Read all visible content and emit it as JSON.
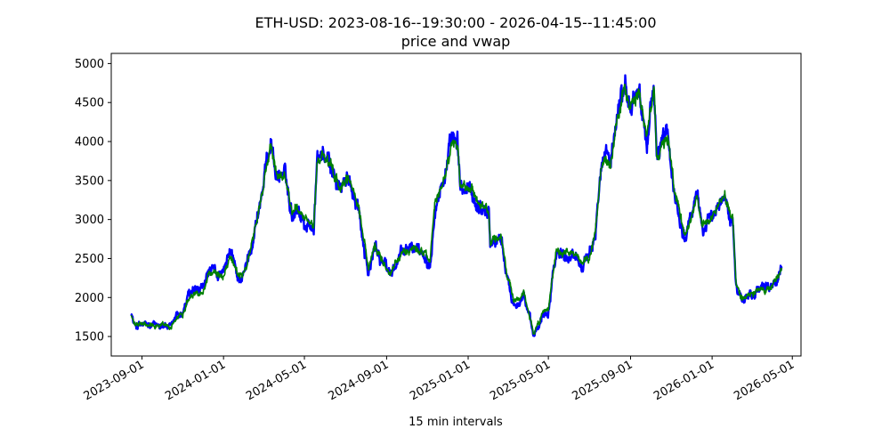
{
  "chart_data": {
    "type": "line",
    "title": "ETH-USD: 2023-08-16--19:30:00 - 2026-04-15--11:45:00",
    "subtitle": "price and vwap",
    "xlabel": "15 min intervals",
    "ylabel": "",
    "x_ticks": [
      "2023-09-01",
      "2024-01-01",
      "2024-05-01",
      "2024-09-01",
      "2025-01-01",
      "2025-05-01",
      "2025-09-01",
      "2026-01-01",
      "2026-05-01"
    ],
    "y_ticks": [
      1500,
      2000,
      2500,
      3000,
      3500,
      4000,
      4500,
      5000
    ],
    "xlim": [
      "2023-07-17",
      "2026-05-14"
    ],
    "ylim": [
      1250,
      5130
    ],
    "grid": false,
    "legend": "none",
    "series": [
      {
        "color": "#0000ff",
        "x": [
          "2023-08-16",
          "2023-08-20",
          "2023-09-01",
          "2023-09-15",
          "2023-10-01",
          "2023-10-15",
          "2023-10-23",
          "2023-11-01",
          "2023-11-10",
          "2023-12-01",
          "2023-12-10",
          "2024-01-01",
          "2024-01-11",
          "2024-01-23",
          "2024-02-01",
          "2024-02-15",
          "2024-02-29",
          "2024-03-05",
          "2024-03-12",
          "2024-03-20",
          "2024-04-01",
          "2024-04-13",
          "2024-04-20",
          "2024-05-01",
          "2024-05-15",
          "2024-05-20",
          "2024-05-27",
          "2024-06-10",
          "2024-06-24",
          "2024-07-08",
          "2024-07-20",
          "2024-08-05",
          "2024-08-15",
          "2024-09-06",
          "2024-09-27",
          "2024-10-15",
          "2024-10-30",
          "2024-11-05",
          "2024-11-12",
          "2024-11-25",
          "2024-12-08",
          "2024-12-16",
          "2024-12-20",
          "2025-01-06",
          "2025-01-13",
          "2025-02-01",
          "2025-02-03",
          "2025-02-20",
          "2025-03-01",
          "2025-03-11",
          "2025-03-25",
          "2025-04-09",
          "2025-04-15",
          "2025-04-23",
          "2025-05-01",
          "2025-05-08",
          "2025-05-13",
          "2025-05-22",
          "2025-06-10",
          "2025-06-22",
          "2025-07-01",
          "2025-07-10",
          "2025-07-18",
          "2025-07-28",
          "2025-08-02",
          "2025-08-11",
          "2025-08-22",
          "2025-09-01",
          "2025-09-13",
          "2025-09-25",
          "2025-10-06",
          "2025-10-10",
          "2025-10-27",
          "2025-11-04",
          "2025-11-21",
          "2025-12-01",
          "2025-12-10",
          "2025-12-18",
          "2026-01-01",
          "2026-01-06",
          "2026-01-20",
          "2026-02-01",
          "2026-02-06",
          "2026-02-15",
          "2026-03-01",
          "2026-03-15",
          "2026-04-01",
          "2026-04-15"
        ],
        "y": [
          1820,
          1640,
          1650,
          1620,
          1670,
          1600,
          1780,
          1800,
          2030,
          2090,
          2340,
          2280,
          2600,
          2240,
          2300,
          2800,
          3400,
          3700,
          4050,
          3550,
          3600,
          3050,
          3200,
          2950,
          2900,
          3750,
          3850,
          3650,
          3400,
          3500,
          3200,
          2300,
          2650,
          2300,
          2600,
          2650,
          2550,
          2420,
          3200,
          3500,
          4000,
          3950,
          3400,
          3350,
          3200,
          3100,
          2700,
          2750,
          2200,
          1900,
          2050,
          1490,
          1620,
          1800,
          1830,
          2350,
          2600,
          2550,
          2550,
          2450,
          2480,
          2800,
          3650,
          3800,
          3650,
          4300,
          4750,
          4400,
          4700,
          3950,
          4700,
          3850,
          4100,
          3400,
          2750,
          3050,
          3300,
          2900,
          3000,
          3100,
          3300,
          3000,
          2100,
          1980,
          2050,
          2100,
          2150,
          2380
        ]
      },
      {
        "color": "#008000",
        "x": [
          "2023-08-16",
          "2023-08-20",
          "2023-09-01",
          "2023-09-15",
          "2023-10-01",
          "2023-10-15",
          "2023-10-23",
          "2023-11-01",
          "2023-11-10",
          "2023-12-01",
          "2023-12-10",
          "2024-01-01",
          "2024-01-11",
          "2024-01-23",
          "2024-02-01",
          "2024-02-15",
          "2024-02-29",
          "2024-03-05",
          "2024-03-12",
          "2024-03-20",
          "2024-04-01",
          "2024-04-13",
          "2024-04-20",
          "2024-05-01",
          "2024-05-15",
          "2024-05-20",
          "2024-05-27",
          "2024-06-10",
          "2024-06-24",
          "2024-07-08",
          "2024-07-20",
          "2024-08-05",
          "2024-08-15",
          "2024-09-06",
          "2024-09-27",
          "2024-10-15",
          "2024-10-30",
          "2024-11-05",
          "2024-11-12",
          "2024-11-25",
          "2024-12-08",
          "2024-12-16",
          "2024-12-20",
          "2025-01-06",
          "2025-01-13",
          "2025-02-01",
          "2025-02-03",
          "2025-02-20",
          "2025-03-01",
          "2025-03-11",
          "2025-03-25",
          "2025-04-09",
          "2025-04-15",
          "2025-04-23",
          "2025-05-01",
          "2025-05-08",
          "2025-05-13",
          "2025-05-22",
          "2025-06-10",
          "2025-06-22",
          "2025-07-01",
          "2025-07-10",
          "2025-07-18",
          "2025-07-28",
          "2025-08-02",
          "2025-08-11",
          "2025-08-22",
          "2025-09-01",
          "2025-09-13",
          "2025-09-25",
          "2025-10-06",
          "2025-10-10",
          "2025-10-27",
          "2025-11-04",
          "2025-11-21",
          "2025-12-01",
          "2025-12-10",
          "2025-12-18",
          "2026-01-01",
          "2026-01-06",
          "2026-01-20",
          "2026-02-01",
          "2026-02-06",
          "2026-02-15",
          "2026-03-01",
          "2026-03-15",
          "2026-04-01",
          "2026-04-15"
        ],
        "y": [
          1780,
          1650,
          1655,
          1630,
          1665,
          1610,
          1760,
          1790,
          2020,
          2080,
          2320,
          2285,
          2560,
          2260,
          2310,
          2780,
          3380,
          3660,
          4000,
          3560,
          3590,
          3080,
          3190,
          2970,
          2920,
          3720,
          3820,
          3640,
          3410,
          3490,
          3220,
          2380,
          2640,
          2320,
          2600,
          2640,
          2560,
          2440,
          3180,
          3480,
          3960,
          3930,
          3420,
          3360,
          3220,
          3110,
          2740,
          2740,
          2260,
          1940,
          2060,
          1540,
          1630,
          1790,
          1820,
          2330,
          2580,
          2550,
          2540,
          2460,
          2490,
          2780,
          3610,
          3770,
          3640,
          4260,
          4700,
          4400,
          4650,
          3980,
          4660,
          3880,
          4080,
          3430,
          2800,
          3060,
          3290,
          2920,
          3010,
          3110,
          3280,
          3010,
          2160,
          2000,
          2060,
          2110,
          2150,
          2360
        ]
      }
    ]
  }
}
